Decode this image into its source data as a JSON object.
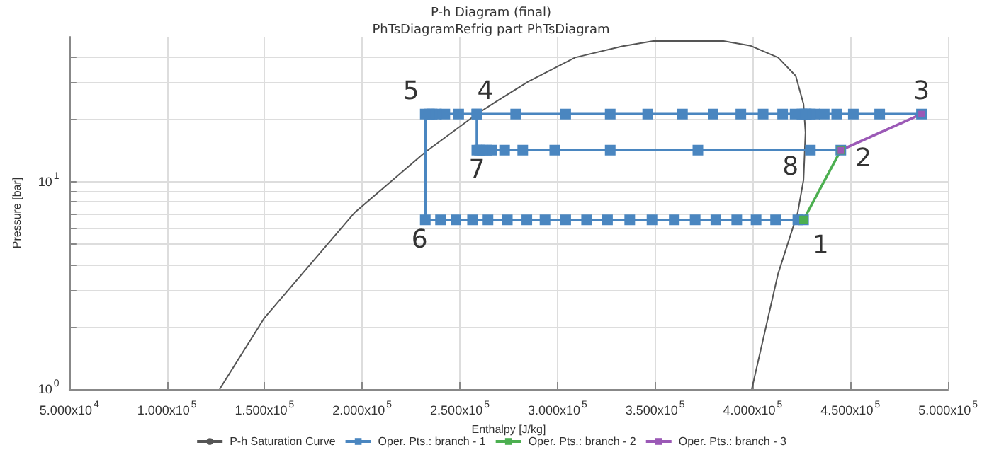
{
  "chart_data": {
    "type": "line",
    "title": "P-h Diagram (final)",
    "subtitle": "PhTsDiagramRefrig part PhTsDiagram",
    "xlabel": "Enthalpy [J/kg]",
    "ylabel": "Pressure [bar]",
    "xlim": [
      50000,
      500000
    ],
    "xticks": [
      {
        "value": 50000,
        "label": "5.000x10$^{4}$"
      },
      {
        "value": 100000,
        "label": "1.000x10$^{5}$"
      },
      {
        "value": 150000,
        "label": "1.500x10$^{5}$"
      },
      {
        "value": 200000,
        "label": "2.000x10$^{5}$"
      },
      {
        "value": 250000,
        "label": "2.500x10$^{5}$"
      },
      {
        "value": 300000,
        "label": "3.000x10$^{5}$"
      },
      {
        "value": 350000,
        "label": "3.500x10$^{5}$"
      },
      {
        "value": 400000,
        "label": "4.000x10$^{5}$"
      },
      {
        "value": 450000,
        "label": "4.500x10$^{5}$"
      },
      {
        "value": 500000,
        "label": "5.000x10$^{5}$"
      }
    ],
    "ylim": [
      1,
      50
    ],
    "log": "y",
    "yticks": [
      {
        "value": 1,
        "label": "10$^{0}$"
      },
      {
        "value": 2,
        "label": null
      },
      {
        "value": 3,
        "label": null
      },
      {
        "value": 4,
        "label": null
      },
      {
        "value": 5,
        "label": null
      },
      {
        "value": 6,
        "label": null
      },
      {
        "value": 7,
        "label": null
      },
      {
        "value": 8,
        "label": null
      },
      {
        "value": 9,
        "label": null
      },
      {
        "value": 10,
        "label": "10$^{1}$"
      },
      {
        "value": 20,
        "label": null
      },
      {
        "value": 30,
        "label": null
      },
      {
        "value": 40,
        "label": null
      }
    ],
    "grid": true,
    "legend": "bottom",
    "marker": "square",
    "series": [
      {
        "name": "P-h Saturation Curve",
        "color": "#555555",
        "marker": "none",
        "x": [
          127000,
          149700,
          196000,
          232300,
          258700,
          268700,
          285000,
          309000,
          333000,
          349000,
          385000,
          399000,
          413000,
          422000,
          426000,
          427000,
          426000,
          423000,
          413000,
          399500
        ],
        "values": [
          1,
          2.19,
          7.08,
          13.9,
          21.2,
          24.4,
          30.4,
          39.7,
          45.0,
          47.7,
          47.7,
          45.2,
          39.7,
          32.4,
          23.7,
          17.3,
          10.2,
          7.08,
          3.61,
          1
        ]
      },
      {
        "name": "Oper. Pts.: branch - 1",
        "color": "#4a86c0",
        "x": [
          486400,
          465000,
          451500,
          443000,
          436600,
          431600,
          429500,
          427400,
          426700,
          425200,
          421700,
          415300,
          405300,
          393900,
          379700,
          364000,
          346200,
          327000,
          304200,
          278600,
          258700,
          249400,
          242300,
          238000,
          235800,
          234400,
          232300,
          232300,
          240100,
          248000,
          256500,
          264400,
          274300,
          284300,
          293600,
          304200,
          314900,
          325600,
          337000,
          348400,
          359800,
          370500,
          381100,
          391800,
          401700,
          411700,
          423100,
          426000,
          null,
          445100,
          429500,
          371900,
          327000,
          298600,
          282200,
          272900,
          266500,
          263700,
          261500,
          260100,
          258700,
          258700
        ],
        "values": [
          21.2,
          21.2,
          21.2,
          21.2,
          21.2,
          21.2,
          21.2,
          21.2,
          21.2,
          21.2,
          21.2,
          21.2,
          21.2,
          21.2,
          21.2,
          21.2,
          21.2,
          21.2,
          21.2,
          21.2,
          21.2,
          21.2,
          21.2,
          21.2,
          21.2,
          21.2,
          21.2,
          6.55,
          6.55,
          6.55,
          6.55,
          6.55,
          6.55,
          6.55,
          6.55,
          6.55,
          6.55,
          6.55,
          6.55,
          6.55,
          6.55,
          6.55,
          6.55,
          6.55,
          6.55,
          6.55,
          6.55,
          6.55,
          null,
          14.2,
          14.2,
          14.2,
          14.2,
          14.2,
          14.2,
          14.2,
          14.2,
          14.2,
          14.2,
          14.2,
          14.2,
          21.2
        ]
      },
      {
        "name": "Oper. Pts.: branch - 2",
        "color": "#4caf50",
        "x": [
          426000,
          445100
        ],
        "values": [
          6.55,
          14.2
        ]
      },
      {
        "name": "Oper. Pts.: branch - 3",
        "color": "#9b59b6",
        "x": [
          445100,
          486400
        ],
        "values": [
          14.2,
          21.2
        ]
      }
    ],
    "annotations": [
      {
        "text": "1",
        "x": 426000,
        "y": 6.55
      },
      {
        "text": "2",
        "x": 445100,
        "y": 14.2
      },
      {
        "text": "3",
        "x": 486400,
        "y": 21.2
      },
      {
        "text": "4",
        "x": 258700,
        "y": 21.2
      },
      {
        "text": "5",
        "x": 232300,
        "y": 21.2
      },
      {
        "text": "6",
        "x": 232300,
        "y": 6.55
      },
      {
        "text": "7",
        "x": 258700,
        "y": 14.2
      },
      {
        "text": "8",
        "x": 429500,
        "y": 14.2
      }
    ]
  }
}
